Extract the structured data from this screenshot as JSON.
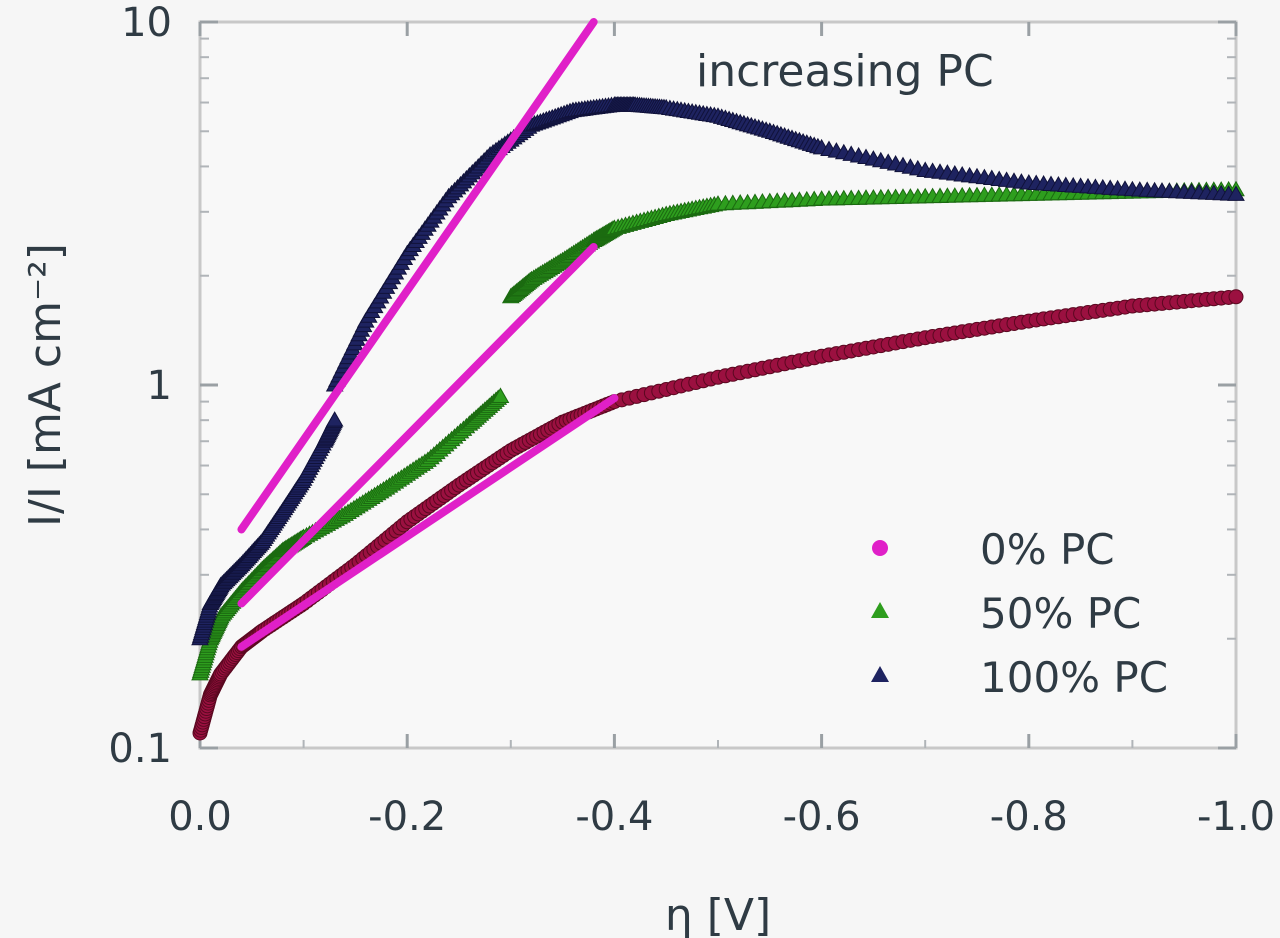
{
  "chart_data": {
    "type": "scatter",
    "title": "",
    "xlabel": "η [V]",
    "ylabel": "I/I [mA cm⁻²]",
    "x_scale": "linear",
    "y_scale": "log",
    "xlim": [
      0.0,
      -1.0
    ],
    "ylim": [
      0.1,
      10
    ],
    "x_ticks": [
      0.0,
      -0.2,
      -0.4,
      -0.6,
      -0.8,
      -1.0
    ],
    "x_tick_labels": [
      "0.0",
      "-0.2",
      "-0.4",
      "-0.6",
      "-0.8",
      "-1.0"
    ],
    "y_ticks": [
      0.1,
      1,
      10
    ],
    "y_tick_labels": [
      "0.1",
      "1",
      "10"
    ],
    "annotation": "increasing PC",
    "legend_position": "bottom-right",
    "series": [
      {
        "name": "0% PC",
        "color": "#9b1040",
        "marker": "circle",
        "segments": [
          {
            "x": [
              0.0,
              -0.01,
              -0.02,
              -0.04,
              -0.06,
              -0.1,
              -0.15,
              -0.2,
              -0.25,
              -0.3,
              -0.35,
              -0.4,
              -0.5,
              -0.6,
              -0.7,
              -0.8,
              -0.9,
              -1.0
            ],
            "y": [
              0.11,
              0.14,
              0.16,
              0.19,
              0.21,
              0.25,
              0.32,
              0.42,
              0.53,
              0.66,
              0.79,
              0.9,
              1.05,
              1.2,
              1.35,
              1.5,
              1.65,
              1.75
            ]
          }
        ]
      },
      {
        "name": "50% PC",
        "color": "#2e9e1e",
        "marker": "triangle",
        "segments": [
          {
            "x": [
              0.0,
              -0.01,
              -0.02,
              -0.04,
              -0.06,
              -0.08,
              -0.1,
              -0.14,
              -0.18,
              -0.22,
              -0.26,
              -0.29
            ],
            "y": [
              0.16,
              0.2,
              0.23,
              0.27,
              0.31,
              0.35,
              0.38,
              0.44,
              0.52,
              0.62,
              0.78,
              0.93
            ]
          },
          {
            "x": [
              -0.3,
              -0.32,
              -0.35,
              -0.38,
              -0.4,
              -0.45,
              -0.5,
              -0.6,
              -0.7,
              -0.8,
              -0.9,
              -1.0
            ],
            "y": [
              1.75,
              1.95,
              2.2,
              2.5,
              2.7,
              2.95,
              3.15,
              3.25,
              3.3,
              3.35,
              3.4,
              3.45
            ]
          }
        ]
      },
      {
        "name": "100% PC",
        "color": "#1e2360",
        "marker": "triangle",
        "segments": [
          {
            "x": [
              0.0,
              -0.01,
              -0.02,
              -0.04,
              -0.06,
              -0.08,
              -0.1,
              -0.12,
              -0.13
            ],
            "y": [
              0.2,
              0.25,
              0.28,
              0.32,
              0.37,
              0.45,
              0.55,
              0.7,
              0.8
            ]
          },
          {
            "x": [
              -0.13,
              -0.16,
              -0.2,
              -0.24,
              -0.28,
              -0.32,
              -0.36,
              -0.4,
              -0.42,
              -0.45,
              -0.5,
              -0.55,
              -0.6,
              -0.7,
              -0.8,
              -0.9,
              -1.0
            ],
            "y": [
              1.0,
              1.5,
              2.3,
              3.3,
              4.3,
              5.2,
              5.7,
              5.9,
              5.9,
              5.8,
              5.5,
              5.0,
              4.5,
              3.9,
              3.6,
              3.45,
              3.35
            ]
          }
        ]
      }
    ],
    "fit_lines": [
      {
        "color": "#e020c8",
        "x": [
          -0.04,
          -0.38
        ],
        "y": [
          0.4,
          10.0
        ]
      },
      {
        "color": "#e020c8",
        "x": [
          -0.04,
          -0.38
        ],
        "y": [
          0.25,
          2.4
        ]
      },
      {
        "color": "#e020c8",
        "x": [
          -0.04,
          -0.4
        ],
        "y": [
          0.19,
          0.92
        ]
      }
    ],
    "legend": [
      {
        "label": "0% PC",
        "color": "#e020c8",
        "marker": "circle"
      },
      {
        "label": "50% PC",
        "color": "#2e9e1e",
        "marker": "triangle"
      },
      {
        "label": "100% PC",
        "color": "#1e2360",
        "marker": "triangle"
      }
    ]
  }
}
